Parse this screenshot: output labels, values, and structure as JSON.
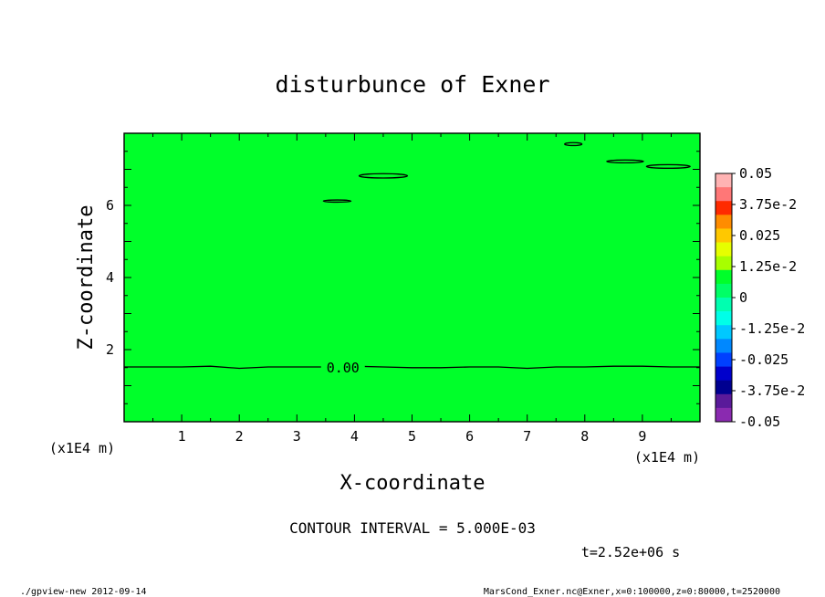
{
  "chart_data": {
    "type": "contour",
    "title": "disturbunce of Exner",
    "xlabel": "X-coordinate",
    "ylabel": "Z-coordinate",
    "x_unit": "(x1E4 m)",
    "y_unit": "(x1E4 m)",
    "xlim": [
      0,
      10
    ],
    "ylim": [
      0,
      8
    ],
    "x_ticks": [
      1,
      2,
      3,
      4,
      5,
      6,
      7,
      8,
      9
    ],
    "y_ticks": [
      2,
      4,
      6
    ],
    "fill_color": "#00ff2a",
    "zero_contour": {
      "label": "0.00",
      "x": [
        0,
        0.5,
        1,
        1.5,
        2,
        2.5,
        3,
        3.5,
        4,
        4.5,
        5,
        5.5,
        6,
        6.5,
        7,
        7.5,
        8,
        8.5,
        9,
        9.5,
        10
      ],
      "y": [
        1.52,
        1.52,
        1.52,
        1.54,
        1.48,
        1.52,
        1.52,
        1.52,
        1.54,
        1.52,
        1.5,
        1.5,
        1.52,
        1.52,
        1.48,
        1.52,
        1.52,
        1.54,
        1.54,
        1.52,
        1.52
      ]
    },
    "small_contours": [
      {
        "cx": 4.5,
        "cy": 6.82,
        "rx": 0.42,
        "ry": 0.06
      },
      {
        "cx": 3.7,
        "cy": 6.12,
        "rx": 0.24,
        "ry": 0.03
      },
      {
        "cx": 7.8,
        "cy": 7.7,
        "rx": 0.15,
        "ry": 0.04
      },
      {
        "cx": 8.7,
        "cy": 7.22,
        "rx": 0.32,
        "ry": 0.04
      },
      {
        "cx": 9.45,
        "cy": 7.08,
        "rx": 0.38,
        "ry": 0.05
      }
    ],
    "colorbar": {
      "labels": [
        "0.05",
        "3.75e-2",
        "0.025",
        "1.25e-2",
        "0",
        "-1.25e-2",
        "-0.025",
        "-3.75e-2",
        "-0.05"
      ],
      "colors": [
        "#ffb3b3",
        "#ff7777",
        "#ff2a00",
        "#ff8c00",
        "#ffc800",
        "#e6ff00",
        "#a8ff00",
        "#00ff2a",
        "#00ff66",
        "#00ffb0",
        "#00ffe8",
        "#00c8ff",
        "#0088ff",
        "#0040ff",
        "#0000cc",
        "#000090",
        "#5a1a9a",
        "#8a2ab0"
      ]
    }
  },
  "contour_interval": "CONTOUR INTERVAL = 5.000E-03",
  "time_label": "t=2.52e+06 s",
  "footer_left": "./gpview-new  2012-09-14",
  "footer_right": "MarsCond_Exner.nc@Exner,x=0:100000,z=0:80000,t=2520000"
}
